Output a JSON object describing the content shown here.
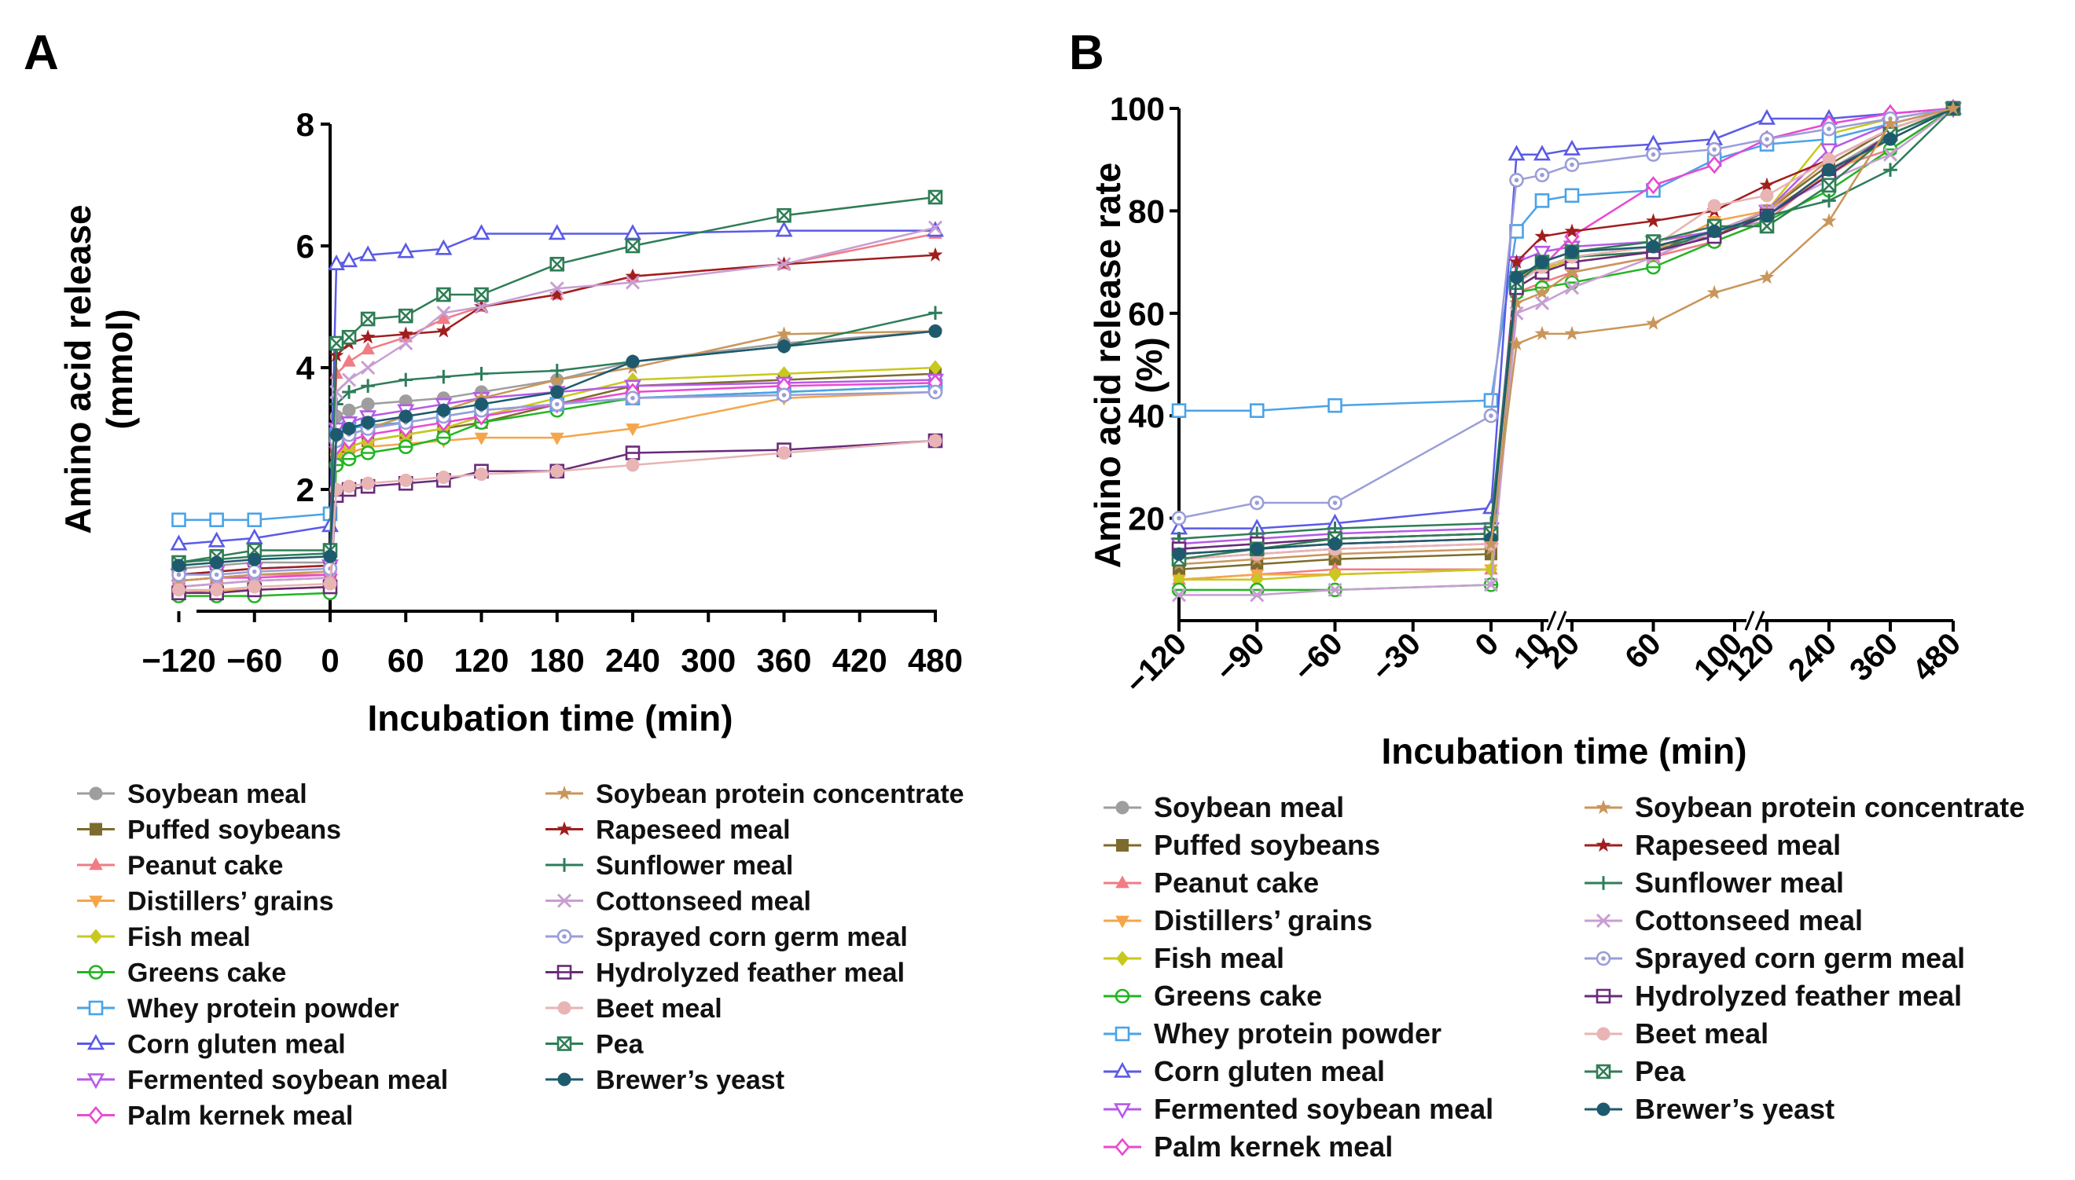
{
  "panels": [
    {
      "panel_label": "A",
      "ylabel_line1": "Amino acid release",
      "ylabel_line2": "(mmol)",
      "xlabel": "Incubation time (min)"
    },
    {
      "panel_label": "B",
      "ylabel_line1": "Amino acid release rate",
      "ylabel_line2": "(%)",
      "xlabel": "Incubation time (min)"
    }
  ],
  "series_styles": [
    {
      "name": "Soybean meal",
      "color": "#9e9e9e",
      "marker": "circle-filled"
    },
    {
      "name": "Puffed soybeans",
      "color": "#7d6b2d",
      "marker": "square-filled"
    },
    {
      "name": "Peanut cake",
      "color": "#f07c84",
      "marker": "triangle-filled"
    },
    {
      "name": "Distillers’ grains",
      "color": "#f5a54a",
      "marker": "triangle-down-filled"
    },
    {
      "name": "Fish meal",
      "color": "#c8c81e",
      "marker": "diamond-filled"
    },
    {
      "name": "Greens cake",
      "color": "#22b522",
      "marker": "circle-plus"
    },
    {
      "name": "Whey protein powder",
      "color": "#4aa3e8",
      "marker": "square-open"
    },
    {
      "name": "Corn gluten meal",
      "color": "#5a5ae8",
      "marker": "triangle-open"
    },
    {
      "name": "Fermented soybean meal",
      "color": "#b55ae8",
      "marker": "triangle-down-open"
    },
    {
      "name": "Palm kernek meal",
      "color": "#e84ad2",
      "marker": "diamond-open"
    },
    {
      "name": "Soybean protein concentrate",
      "color": "#c9965a",
      "marker": "star-filled"
    },
    {
      "name": "Rapeseed meal",
      "color": "#a01e1e",
      "marker": "star-filled"
    },
    {
      "name": "Sunflower meal",
      "color": "#2e7d5a",
      "marker": "plus"
    },
    {
      "name": "Cottonseed meal",
      "color": "#c89ed2",
      "marker": "x"
    },
    {
      "name": "Sprayed corn germ meal",
      "color": "#9a9ed8",
      "marker": "circle-dot"
    },
    {
      "name": "Hydrolyzed feather meal",
      "color": "#6a2a7a",
      "marker": "square-minus"
    },
    {
      "name": "Beet meal",
      "color": "#e8b4b4",
      "marker": "circle-filled-light"
    },
    {
      "name": "Pea",
      "color": "#2f7d55",
      "marker": "square-cross"
    },
    {
      "name": "Brewer’s yeast",
      "color": "#1e5a6e",
      "marker": "circle-filled"
    }
  ],
  "chart_data": [
    {
      "type": "line",
      "panel": "A",
      "title": "",
      "xlabel": "Incubation time (min)",
      "ylabel": "Amino acid release (mmol)",
      "xlim": [
        -120,
        480
      ],
      "ylim": [
        0,
        8
      ],
      "xticks": [
        -120,
        -60,
        0,
        60,
        120,
        180,
        240,
        300,
        360,
        420,
        480
      ],
      "xtick_labels": [
        "−120",
        "−60",
        "0",
        "60",
        "120",
        "180",
        "240",
        "300",
        "360",
        "420",
        "480"
      ],
      "yticks": [
        2,
        4,
        6,
        8
      ],
      "ytick_labels": [
        "2",
        "4",
        "6",
        "8"
      ],
      "legend_position": "below",
      "x": [
        -120,
        -90,
        -60,
        0,
        5,
        15,
        30,
        60,
        90,
        120,
        180,
        240,
        360,
        480
      ],
      "series": [
        {
          "name": "Soybean meal",
          "values": [
            0.7,
            0.75,
            0.8,
            0.8,
            3.2,
            3.3,
            3.4,
            3.45,
            3.5,
            3.6,
            3.8,
            4.1,
            4.4,
            4.6
          ]
        },
        {
          "name": "Puffed soybeans",
          "values": [
            0.4,
            0.45,
            0.5,
            0.55,
            2.6,
            2.7,
            2.8,
            2.9,
            3.0,
            3.1,
            3.4,
            3.7,
            3.8,
            3.9
          ]
        },
        {
          "name": "Peanut cake",
          "values": [
            0.5,
            0.55,
            0.6,
            0.6,
            3.9,
            4.1,
            4.3,
            4.5,
            4.8,
            5.0,
            5.2,
            5.5,
            5.7,
            6.2
          ]
        },
        {
          "name": "Distillers’ grains",
          "values": [
            0.3,
            0.35,
            0.35,
            0.4,
            2.5,
            2.6,
            2.7,
            2.75,
            2.8,
            2.85,
            2.85,
            3.0,
            3.5,
            3.6
          ]
        },
        {
          "name": "Fish meal",
          "values": [
            0.3,
            0.3,
            0.35,
            0.4,
            2.6,
            2.7,
            2.8,
            2.9,
            3.0,
            3.2,
            3.5,
            3.8,
            3.9,
            4.0
          ]
        },
        {
          "name": "Greens cake",
          "values": [
            0.25,
            0.25,
            0.25,
            0.3,
            2.4,
            2.5,
            2.6,
            2.7,
            2.85,
            3.1,
            3.3,
            3.5,
            3.6,
            3.7
          ]
        },
        {
          "name": "Whey protein powder",
          "values": [
            1.5,
            1.5,
            1.5,
            1.6,
            2.9,
            3.0,
            3.05,
            3.1,
            3.2,
            3.3,
            3.4,
            3.5,
            3.6,
            3.7
          ]
        },
        {
          "name": "Corn gluten meal",
          "values": [
            1.1,
            1.15,
            1.2,
            1.4,
            5.7,
            5.75,
            5.85,
            5.9,
            5.95,
            6.2,
            6.2,
            6.2,
            6.25,
            6.25
          ]
        },
        {
          "name": "Fermented soybean meal",
          "values": [
            0.6,
            0.65,
            0.7,
            0.75,
            3.0,
            3.1,
            3.2,
            3.3,
            3.4,
            3.5,
            3.6,
            3.7,
            3.75,
            3.8
          ]
        },
        {
          "name": "Palm kernek meal",
          "values": [
            0.5,
            0.55,
            0.55,
            0.6,
            2.7,
            2.8,
            2.9,
            3.0,
            3.1,
            3.2,
            3.4,
            3.6,
            3.7,
            3.75
          ]
        },
        {
          "name": "Soybean protein concentrate",
          "values": [
            0.5,
            0.55,
            0.6,
            0.65,
            2.8,
            2.9,
            3.0,
            3.2,
            3.3,
            3.5,
            3.8,
            4.0,
            4.55,
            4.6
          ]
        },
        {
          "name": "Rapeseed meal",
          "values": [
            0.6,
            0.65,
            0.7,
            0.75,
            4.2,
            4.4,
            4.5,
            4.55,
            4.6,
            5.0,
            5.2,
            5.5,
            5.7,
            5.85
          ]
        },
        {
          "name": "Sunflower meal",
          "values": [
            0.8,
            0.85,
            0.9,
            0.95,
            3.4,
            3.6,
            3.7,
            3.8,
            3.85,
            3.9,
            3.95,
            4.1,
            4.35,
            4.9
          ]
        },
        {
          "name": "Cottonseed meal",
          "values": [
            0.4,
            0.45,
            0.5,
            0.55,
            3.6,
            3.8,
            4.0,
            4.4,
            4.9,
            5.0,
            5.3,
            5.4,
            5.7,
            6.3
          ]
        },
        {
          "name": "Sprayed corn germ meal",
          "values": [
            0.6,
            0.6,
            0.65,
            0.7,
            2.8,
            2.9,
            3.0,
            3.1,
            3.2,
            3.3,
            3.4,
            3.5,
            3.55,
            3.6
          ]
        },
        {
          "name": "Hydrolyzed feather meal",
          "values": [
            0.3,
            0.3,
            0.35,
            0.4,
            1.9,
            2.0,
            2.05,
            2.1,
            2.15,
            2.3,
            2.3,
            2.6,
            2.65,
            2.8
          ]
        },
        {
          "name": "Beet meal",
          "values": [
            0.35,
            0.35,
            0.4,
            0.45,
            2.0,
            2.05,
            2.1,
            2.15,
            2.2,
            2.25,
            2.3,
            2.4,
            2.6,
            2.8
          ]
        },
        {
          "name": "Pea",
          "values": [
            0.8,
            0.9,
            1.0,
            1.0,
            4.4,
            4.5,
            4.8,
            4.85,
            5.2,
            5.2,
            5.7,
            6.0,
            6.5,
            6.8
          ]
        },
        {
          "name": "Brewer’s yeast",
          "values": [
            0.75,
            0.8,
            0.85,
            0.9,
            2.9,
            3.0,
            3.1,
            3.2,
            3.3,
            3.4,
            3.6,
            4.1,
            4.35,
            4.6
          ]
        }
      ]
    },
    {
      "type": "line",
      "panel": "B",
      "title": "",
      "xlabel": "Incubation time (min)",
      "ylabel": "Amino acid release rate (%)",
      "ylim": [
        0,
        100
      ],
      "axis_breaks": "broken x axis between 10 and 20, 100 and 120, 120 and 240",
      "xticks": [
        -120,
        -90,
        -60,
        -30,
        0,
        10,
        20,
        60,
        100,
        120,
        240,
        360,
        480
      ],
      "xtick_labels": [
        "−120",
        "−90",
        "−60",
        "−30",
        "0",
        "10",
        "20",
        "60",
        "100",
        "120",
        "240",
        "360",
        "480"
      ],
      "yticks": [
        20,
        40,
        60,
        80,
        100
      ],
      "ytick_labels": [
        "20",
        "40",
        "60",
        "80",
        "100"
      ],
      "legend_position": "below",
      "x": [
        -120,
        -90,
        -60,
        0,
        5,
        10,
        20,
        60,
        90,
        120,
        240,
        360,
        480
      ],
      "series": [
        {
          "name": "Soybean meal",
          "values": [
            14,
            15,
            16,
            17,
            66,
            70,
            72,
            74,
            76,
            78,
            88,
            95,
            100
          ]
        },
        {
          "name": "Puffed soybeans",
          "values": [
            10,
            11,
            12,
            13,
            65,
            68,
            71,
            73,
            75,
            80,
            89,
            96,
            100
          ]
        },
        {
          "name": "Peanut cake",
          "values": [
            8,
            9,
            10,
            10,
            64,
            66,
            68,
            71,
            74,
            78,
            88,
            92,
            100
          ]
        },
        {
          "name": "Distillers’ grains",
          "values": [
            8,
            9,
            9,
            10,
            67,
            69,
            70,
            72,
            78,
            80,
            87,
            94,
            100
          ]
        },
        {
          "name": "Fish meal",
          "values": [
            8,
            8,
            9,
            10,
            65,
            68,
            71,
            72,
            76,
            80,
            95,
            98,
            100
          ]
        },
        {
          "name": "Greens cake",
          "values": [
            6,
            6,
            6,
            7,
            64,
            65,
            66,
            69,
            74,
            78,
            84,
            92,
            100
          ]
        },
        {
          "name": "Whey protein powder",
          "values": [
            41,
            41,
            42,
            43,
            76,
            82,
            83,
            84,
            90,
            93,
            94,
            97,
            100
          ]
        },
        {
          "name": "Corn gluten meal",
          "values": [
            18,
            18,
            19,
            22,
            91,
            91,
            92,
            93,
            94,
            98,
            98,
            99,
            100
          ]
        },
        {
          "name": "Fermented soybean meal",
          "values": [
            15,
            16,
            17,
            18,
            70,
            72,
            73,
            74,
            76,
            80,
            92,
            97,
            100
          ]
        },
        {
          "name": "Palm kernek meal",
          "values": [
            12,
            13,
            14,
            15,
            66,
            69,
            75,
            85,
            89,
            94,
            97,
            99,
            100
          ]
        },
        {
          "name": "Soybean protein concentrate",
          "values": [
            11,
            12,
            13,
            14,
            62,
            64,
            68,
            71,
            76,
            80,
            90,
            96,
            100
          ]
        },
        {
          "name": "Rapeseed meal",
          "values": [
            13,
            14,
            15,
            16,
            70,
            75,
            76,
            78,
            80,
            85,
            90,
            96,
            100
          ]
        },
        {
          "name": "Sunflower meal",
          "values": [
            16,
            17,
            18,
            19,
            68,
            69,
            71,
            72,
            76,
            79,
            82,
            88,
            100
          ]
        },
        {
          "name": "Cottonseed meal",
          "values": [
            5,
            5,
            6,
            7,
            60,
            62,
            65,
            71,
            76,
            80,
            86,
            91,
            100
          ]
        },
        {
          "name": "Sprayed corn germ meal",
          "values": [
            20,
            23,
            23,
            40,
            86,
            87,
            89,
            91,
            92,
            94,
            96,
            98,
            100
          ]
        },
        {
          "name": "Hydrolyzed feather meal",
          "values": [
            14,
            15,
            16,
            17,
            65,
            68,
            70,
            72,
            75,
            79,
            87,
            95,
            100
          ]
        },
        {
          "name": "Beet meal",
          "values": [
            12,
            13,
            14,
            15,
            66,
            69,
            71,
            73,
            81,
            83,
            90,
            96,
            100
          ]
        },
        {
          "name": "Pea",
          "values": [
            12,
            14,
            16,
            17,
            66,
            70,
            72,
            74,
            77,
            77,
            85,
            95,
            100
          ]
        },
        {
          "name": "Brewer’s yeast",
          "values": [
            13,
            14,
            15,
            16,
            67,
            70,
            72,
            73,
            76,
            79,
            88,
            94,
            100
          ]
        }
      ],
      "extra_series": [
        {
          "name": "Soybean protein concentrate (lower curve)",
          "x": [
            0,
            5,
            10,
            20,
            60,
            90,
            120,
            240,
            360,
            480
          ],
          "values": [
            15,
            54,
            56,
            56,
            58,
            64,
            67,
            78,
            97,
            100
          ]
        }
      ]
    }
  ]
}
